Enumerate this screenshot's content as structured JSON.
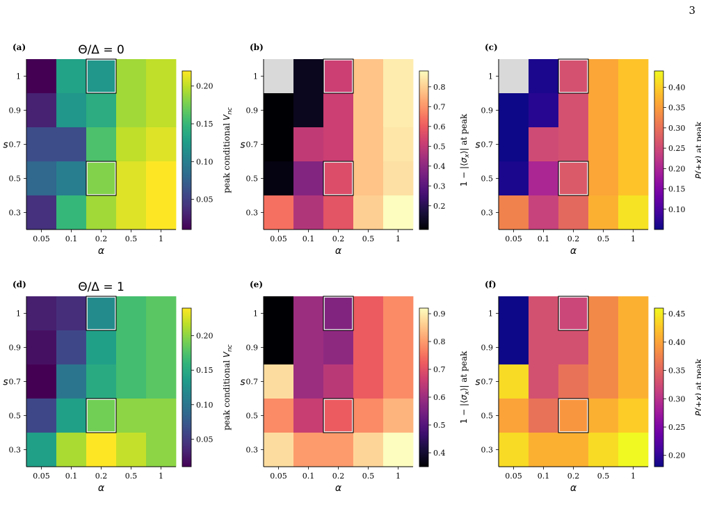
{
  "page_number": "3",
  "chart_data": [
    {
      "type": "heatmap",
      "panel_label": "(a)",
      "title": "Θ/Δ = 0",
      "xlabel": "α",
      "ylabel": "s",
      "x_categories": [
        "0.05",
        "0.1",
        "0.2",
        "0.5",
        "1"
      ],
      "y_categories": [
        "1",
        "0.9",
        "0.7",
        "0.5",
        "0.3"
      ],
      "values": [
        [
          0.01,
          0.13,
          0.12,
          0.19,
          0.2
        ],
        [
          0.03,
          0.12,
          0.14,
          0.19,
          0.2
        ],
        [
          0.06,
          0.06,
          0.16,
          0.2,
          0.21
        ],
        [
          0.08,
          0.1,
          0.18,
          0.21,
          0.22
        ],
        [
          0.04,
          0.15,
          0.19,
          0.21,
          0.22
        ]
      ],
      "colormap": "viridis",
      "vmin": 0.01,
      "vmax": 0.22,
      "colorbar_label": "peak conditional V_nc",
      "colorbar_ticks": [
        "0.05",
        "0.10",
        "0.15",
        "0.20"
      ],
      "colorbar_tick_values": [
        0.05,
        0.1,
        0.15,
        0.2
      ],
      "highlighted_cells": [
        [
          0,
          2
        ],
        [
          3,
          2
        ]
      ],
      "missing_color": "#d9d9d9"
    },
    {
      "type": "heatmap",
      "panel_label": "(b)",
      "title": "",
      "xlabel": "α",
      "ylabel": "s",
      "x_categories": [
        "0.05",
        "0.1",
        "0.2",
        "0.5",
        "1"
      ],
      "y_categories": [
        "1",
        "0.9",
        "0.7",
        "0.5",
        "0.3"
      ],
      "values": [
        [
          null,
          0.12,
          0.52,
          0.78,
          0.85
        ],
        [
          0.08,
          0.12,
          0.52,
          0.78,
          0.85
        ],
        [
          0.08,
          0.5,
          0.52,
          0.78,
          0.84
        ],
        [
          0.1,
          0.38,
          0.56,
          0.78,
          0.83
        ],
        [
          0.64,
          0.47,
          0.58,
          0.8,
          0.88
        ]
      ],
      "colormap": "magma",
      "vmin": 0.08,
      "vmax": 0.88,
      "colorbar_label": "1 − |⟨σx⟩| at peak",
      "colorbar_ticks": [
        "0.2",
        "0.3",
        "0.4",
        "0.5",
        "0.6",
        "0.7",
        "0.8"
      ],
      "colorbar_tick_values": [
        0.2,
        0.3,
        0.4,
        0.5,
        0.6,
        0.7,
        0.8
      ],
      "highlighted_cells": [
        [
          0,
          2
        ],
        [
          3,
          2
        ]
      ],
      "missing_color": "#d9d9d9"
    },
    {
      "type": "heatmap",
      "panel_label": "(c)",
      "title": "",
      "xlabel": "α",
      "ylabel": "s",
      "x_categories": [
        "0.05",
        "0.1",
        "0.2",
        "0.5",
        "1"
      ],
      "y_categories": [
        "1",
        "0.9",
        "0.7",
        "0.5",
        "0.3"
      ],
      "values": [
        [
          null,
          0.06,
          0.26,
          0.36,
          0.39
        ],
        [
          0.05,
          0.07,
          0.26,
          0.36,
          0.39
        ],
        [
          0.05,
          0.25,
          0.26,
          0.36,
          0.39
        ],
        [
          0.06,
          0.2,
          0.27,
          0.36,
          0.39
        ],
        [
          0.32,
          0.24,
          0.29,
          0.37,
          0.42
        ]
      ],
      "colormap": "plasma",
      "vmin": 0.05,
      "vmax": 0.44,
      "colorbar_label": "P(+x) at peak",
      "colorbar_ticks": [
        "0.10",
        "0.15",
        "0.20",
        "0.25",
        "0.30",
        "0.35",
        "0.40"
      ],
      "colorbar_tick_values": [
        0.1,
        0.15,
        0.2,
        0.25,
        0.3,
        0.35,
        0.4
      ],
      "highlighted_cells": [
        [
          0,
          2
        ],
        [
          3,
          2
        ]
      ],
      "missing_color": "#d9d9d9"
    },
    {
      "type": "heatmap",
      "panel_label": "(d)",
      "title": "Θ/Δ = 1",
      "xlabel": "α",
      "ylabel": "s",
      "x_categories": [
        "0.05",
        "0.1",
        "0.2",
        "0.5",
        "1"
      ],
      "y_categories": [
        "1",
        "0.9",
        "0.7",
        "0.5",
        "0.3"
      ],
      "values": [
        [
          0.03,
          0.04,
          0.12,
          0.17,
          0.18
        ],
        [
          0.02,
          0.06,
          0.14,
          0.17,
          0.18
        ],
        [
          0.01,
          0.1,
          0.15,
          0.17,
          0.18
        ],
        [
          0.06,
          0.14,
          0.19,
          0.2,
          0.2
        ],
        [
          0.14,
          0.21,
          0.24,
          0.22,
          0.2
        ]
      ],
      "colormap": "viridis",
      "vmin": 0.01,
      "vmax": 0.24,
      "colorbar_label": "peak conditional V_nc",
      "colorbar_ticks": [
        "0.05",
        "0.10",
        "0.15",
        "0.20"
      ],
      "colorbar_tick_values": [
        0.05,
        0.1,
        0.15,
        0.2
      ],
      "highlighted_cells": [
        [
          0,
          2
        ],
        [
          3,
          2
        ]
      ],
      "missing_color": "#d9d9d9"
    },
    {
      "type": "heatmap",
      "panel_label": "(e)",
      "title": "",
      "xlabel": "α",
      "ylabel": "s",
      "x_categories": [
        "0.05",
        "0.1",
        "0.2",
        "0.5",
        "1"
      ],
      "y_categories": [
        "1",
        "0.9",
        "0.7",
        "0.5",
        "0.3"
      ],
      "values": [
        [
          0.35,
          0.6,
          0.56,
          0.72,
          0.78
        ],
        [
          0.35,
          0.6,
          0.58,
          0.72,
          0.78
        ],
        [
          0.88,
          0.6,
          0.64,
          0.72,
          0.78
        ],
        [
          0.78,
          0.66,
          0.72,
          0.78,
          0.83
        ],
        [
          0.88,
          0.8,
          0.8,
          0.87,
          0.92
        ]
      ],
      "colormap": "magma",
      "vmin": 0.35,
      "vmax": 0.92,
      "colorbar_label": "1 − |⟨σx⟩| at peak",
      "colorbar_ticks": [
        "0.4",
        "0.5",
        "0.6",
        "0.7",
        "0.8",
        "0.9"
      ],
      "colorbar_tick_values": [
        0.4,
        0.5,
        0.6,
        0.7,
        0.8,
        0.9
      ],
      "highlighted_cells": [
        [
          0,
          2
        ],
        [
          3,
          2
        ]
      ],
      "missing_color": "#d9d9d9"
    },
    {
      "type": "heatmap",
      "panel_label": "(f)",
      "title": "",
      "xlabel": "α",
      "ylabel": "s",
      "x_categories": [
        "0.05",
        "0.1",
        "0.2",
        "0.5",
        "1"
      ],
      "y_categories": [
        "1",
        "0.9",
        "0.7",
        "0.5",
        "0.3"
      ],
      "values": [
        [
          0.18,
          0.33,
          0.32,
          0.38,
          0.41
        ],
        [
          0.18,
          0.33,
          0.33,
          0.38,
          0.41
        ],
        [
          0.44,
          0.33,
          0.36,
          0.38,
          0.41
        ],
        [
          0.4,
          0.36,
          0.39,
          0.41,
          0.43
        ],
        [
          0.44,
          0.41,
          0.41,
          0.44,
          0.46
        ]
      ],
      "colormap": "plasma",
      "vmin": 0.18,
      "vmax": 0.46,
      "colorbar_label": "P(+x) at peak",
      "colorbar_ticks": [
        "0.20",
        "0.25",
        "0.30",
        "0.35",
        "0.40",
        "0.45"
      ],
      "colorbar_tick_values": [
        0.2,
        0.25,
        0.3,
        0.35,
        0.4,
        0.45
      ],
      "highlighted_cells": [
        [
          0,
          2
        ],
        [
          3,
          2
        ]
      ],
      "missing_color": "#d9d9d9"
    }
  ]
}
